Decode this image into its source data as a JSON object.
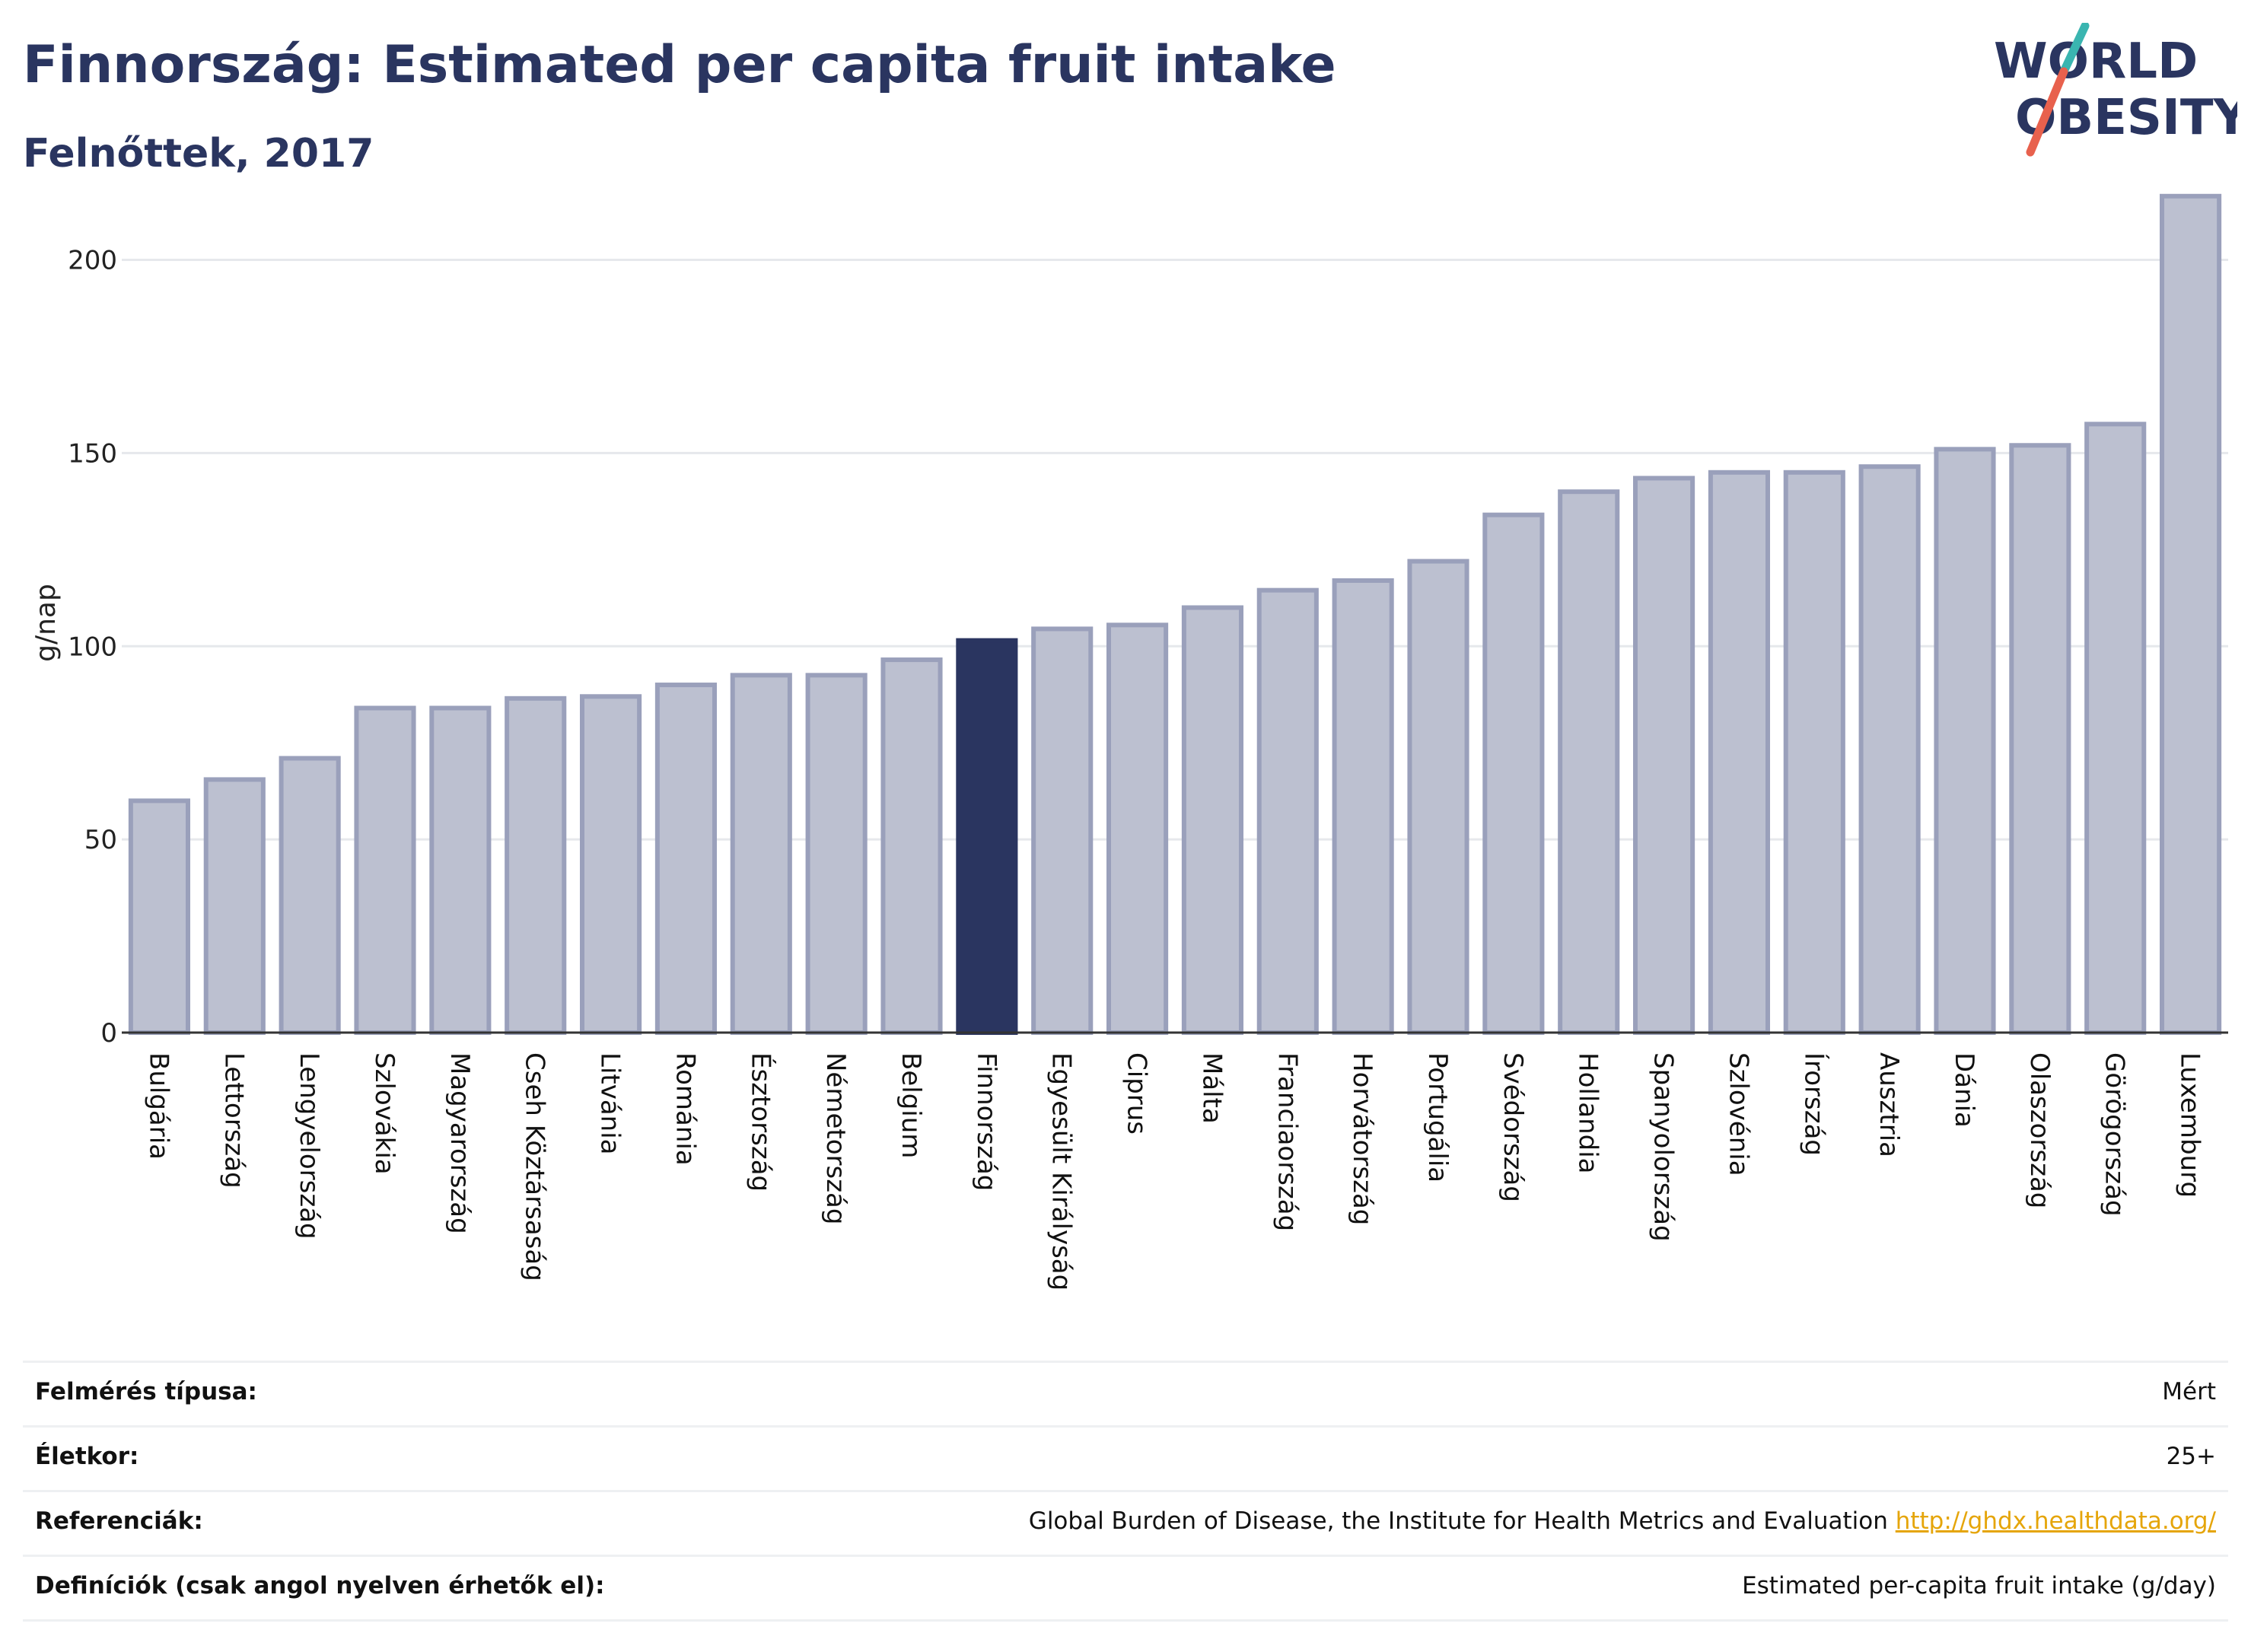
{
  "header": {
    "title": "Finnország: Estimated per capita fruit intake",
    "subtitle": "Felnőttek, 2017"
  },
  "logo": {
    "line1": "WORLD",
    "line2": "OBESITY",
    "colors": {
      "text": "#2a3560",
      "slash_teal": "#3ab5b0",
      "slash_red": "#e8614d"
    }
  },
  "chart_data": {
    "type": "bar",
    "ylabel": "g/nap",
    "ylim": [
      0,
      220
    ],
    "yticks": [
      0,
      50,
      100,
      150,
      200
    ],
    "grid": true,
    "highlight": "Finnország",
    "colors": {
      "bar_fill": "#bcc0d0",
      "bar_stroke": "#9aa0bb",
      "highlight": "#2a3560",
      "grid": "#e6e8ec",
      "axis": "#333333"
    },
    "categories": [
      "Bulgária",
      "Lettország",
      "Lengyelország",
      "Szlovákia",
      "Magyarország",
      "Cseh Köztársaság",
      "Litvánia",
      "Románia",
      "Észtország",
      "Németország",
      "Belgium",
      "Finnország",
      "Egyesült Királyság",
      "Ciprus",
      "Málta",
      "Franciaország",
      "Horvátország",
      "Portugália",
      "Svédország",
      "Hollandia",
      "Spanyolország",
      "Szlovénia",
      "Írország",
      "Ausztria",
      "Dánia",
      "Olaszország",
      "Görögország",
      "Luxemburg"
    ],
    "values": [
      60,
      65.5,
      71,
      84,
      84,
      86.5,
      87,
      90,
      92.5,
      92.5,
      96.5,
      101.5,
      104.5,
      105.5,
      110,
      114.5,
      117,
      122,
      134,
      140,
      143.5,
      145,
      145,
      146.5,
      151,
      152,
      157.5,
      216.5
    ]
  },
  "meta": [
    {
      "label": "Felmérés típusa:",
      "value": "Mért"
    },
    {
      "label": "Életkor:",
      "value": "25+"
    },
    {
      "label": "Referenciák:",
      "value": "Global Burden of Disease, the Institute for Health Metrics and Evaluation",
      "link": "http://ghdx.healthdata.org/"
    },
    {
      "label": "Definíciók (csak angol nyelven érhetők el):",
      "value": "Estimated per-capita fruit intake (g/day)"
    }
  ]
}
